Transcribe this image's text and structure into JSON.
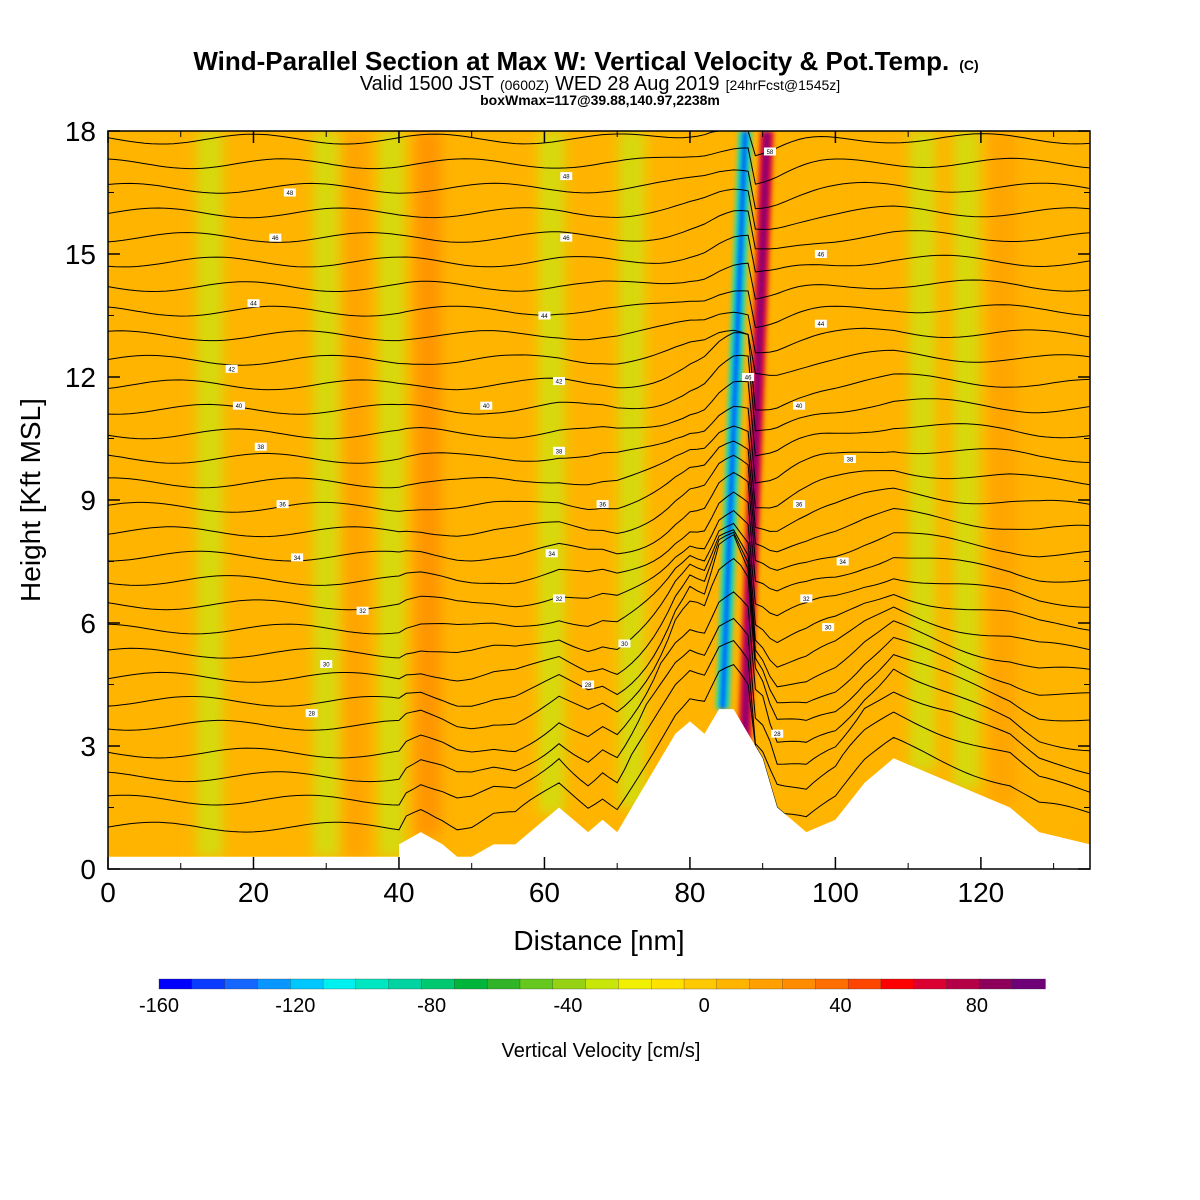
{
  "chart_data": {
    "type": "heatmap",
    "title": "Wind-Parallel Section at Max W: Vertical Velocity & Pot.Temp.",
    "title_mark": "(C)",
    "subtitle": {
      "prefix": "Valid 1500 JST",
      "utc": "(0600Z)",
      "date": "WED 28 Aug 2019",
      "forecast": "[24hrFcst@1545z]"
    },
    "subtitle2": "boxWmax=117@39.88,140.97,2238m",
    "xlabel": "Distance [nm]",
    "ylabel": "Height [Kft MSL]",
    "xlim": [
      0,
      135
    ],
    "ylim": [
      0,
      18
    ],
    "x_ticks": [
      "0",
      "20",
      "40",
      "60",
      "80",
      "100",
      "120"
    ],
    "y_ticks": [
      "0",
      "3",
      "6",
      "9",
      "12",
      "15",
      "18"
    ],
    "colorbar": {
      "label": "Vertical Velocity [cm/s]",
      "range": [
        -160,
        100
      ],
      "step": 10,
      "ticks": [
        "-160",
        "-120",
        "-80",
        "-40",
        "0",
        "40",
        "80"
      ],
      "colors": [
        "#0000ff",
        "#0a3cff",
        "#1466ff",
        "#0a96ff",
        "#00c8ff",
        "#00f0f0",
        "#00e6c0",
        "#00d2a0",
        "#00c870",
        "#00b43c",
        "#32b428",
        "#64c81e",
        "#96d214",
        "#c8e60a",
        "#f0f000",
        "#ffe100",
        "#ffc800",
        "#ffb400",
        "#ffa000",
        "#ff8c00",
        "#ff6e00",
        "#ff4600",
        "#ff0000",
        "#dc0032",
        "#b40046",
        "#8c005a",
        "#6e0078"
      ]
    },
    "terrain": {
      "distance_nm": [
        0,
        40,
        40,
        43,
        46,
        48,
        50,
        53,
        56,
        60,
        62,
        64,
        66,
        68,
        70,
        72,
        74,
        76,
        78,
        80,
        82,
        84,
        86,
        88,
        90,
        92,
        94,
        96,
        100,
        104,
        108,
        112,
        116,
        120,
        124,
        128,
        135
      ],
      "height_kft": [
        0.3,
        0.3,
        0.6,
        0.9,
        0.6,
        0.3,
        0.3,
        0.6,
        0.6,
        1.2,
        1.5,
        1.2,
        0.9,
        1.2,
        0.9,
        1.5,
        2.1,
        2.7,
        3.3,
        3.6,
        3.3,
        3.9,
        3.9,
        3.3,
        2.7,
        1.5,
        1.2,
        0.9,
        1.2,
        2.1,
        2.7,
        2.4,
        2.1,
        1.8,
        1.5,
        0.9,
        0.6
      ]
    },
    "updrafts": [
      {
        "x": 6,
        "w": 18
      },
      {
        "x": 20,
        "w": 14
      },
      {
        "x": 34,
        "w": 35
      },
      {
        "x": 44,
        "w": 55
      },
      {
        "x": 52,
        "w": 20
      },
      {
        "x": 58,
        "w": 10
      },
      {
        "x": 67,
        "w": 20
      },
      {
        "x": 76,
        "w": 15
      },
      {
        "x": 83,
        "w": 30
      },
      {
        "x": 89,
        "w": 117
      },
      {
        "x": 98,
        "w": 20
      },
      {
        "x": 105,
        "w": 25
      },
      {
        "x": 123,
        "w": 35
      },
      {
        "x": 130,
        "w": 18
      }
    ],
    "downdrafts": [
      {
        "x": 14,
        "w": -10
      },
      {
        "x": 30,
        "w": -12
      },
      {
        "x": 39,
        "w": -18
      },
      {
        "x": 61,
        "w": -30
      },
      {
        "x": 72,
        "w": -15
      },
      {
        "x": 86,
        "w": -160
      },
      {
        "x": 112,
        "w": -35
      },
      {
        "x": 118,
        "w": -25
      }
    ],
    "theta_contours": {
      "base_height_kft": [
        0.8,
        1.5,
        2.1,
        2.7,
        3.4,
        4.0,
        4.6,
        5.2,
        5.8,
        6.4,
        7.0,
        7.6,
        8.2,
        8.8,
        9.4,
        10.0,
        10.6,
        11.2,
        11.8,
        12.4,
        13.0,
        13.6,
        14.2,
        14.8,
        15.4,
        16.0,
        16.6,
        17.2,
        17.8
      ],
      "labels": [
        {
          "x": 25,
          "y": 16.5,
          "text": "48"
        },
        {
          "x": 63,
          "y": 16.9,
          "text": "48"
        },
        {
          "x": 23,
          "y": 15.4,
          "text": "46"
        },
        {
          "x": 63,
          "y": 15.4,
          "text": "46"
        },
        {
          "x": 98,
          "y": 15.0,
          "text": "46"
        },
        {
          "x": 20,
          "y": 13.8,
          "text": "44"
        },
        {
          "x": 60,
          "y": 13.5,
          "text": "44"
        },
        {
          "x": 98,
          "y": 13.3,
          "text": "44"
        },
        {
          "x": 17,
          "y": 12.2,
          "text": "42"
        },
        {
          "x": 62,
          "y": 11.9,
          "text": "42"
        },
        {
          "x": 18,
          "y": 11.3,
          "text": "40"
        },
        {
          "x": 52,
          "y": 11.3,
          "text": "40"
        },
        {
          "x": 95,
          "y": 11.3,
          "text": "40"
        },
        {
          "x": 21,
          "y": 10.3,
          "text": "38"
        },
        {
          "x": 62,
          "y": 10.2,
          "text": "38"
        },
        {
          "x": 102,
          "y": 10.0,
          "text": "38"
        },
        {
          "x": 24,
          "y": 8.9,
          "text": "36"
        },
        {
          "x": 68,
          "y": 8.9,
          "text": "36"
        },
        {
          "x": 95,
          "y": 8.9,
          "text": "36"
        },
        {
          "x": 26,
          "y": 7.6,
          "text": "34"
        },
        {
          "x": 61,
          "y": 7.7,
          "text": "34"
        },
        {
          "x": 101,
          "y": 7.5,
          "text": "34"
        },
        {
          "x": 35,
          "y": 6.3,
          "text": "32"
        },
        {
          "x": 62,
          "y": 6.6,
          "text": "32"
        },
        {
          "x": 96,
          "y": 6.6,
          "text": "32"
        },
        {
          "x": 30,
          "y": 5.0,
          "text": "30"
        },
        {
          "x": 71,
          "y": 5.5,
          "text": "30"
        },
        {
          "x": 99,
          "y": 5.9,
          "text": "30"
        },
        {
          "x": 28,
          "y": 3.8,
          "text": "28"
        },
        {
          "x": 66,
          "y": 4.5,
          "text": "28"
        },
        {
          "x": 88,
          "y": 12.0,
          "text": "46"
        },
        {
          "x": 92,
          "y": 3.3,
          "text": "28"
        },
        {
          "x": 91,
          "y": 17.5,
          "text": "58"
        }
      ]
    }
  }
}
